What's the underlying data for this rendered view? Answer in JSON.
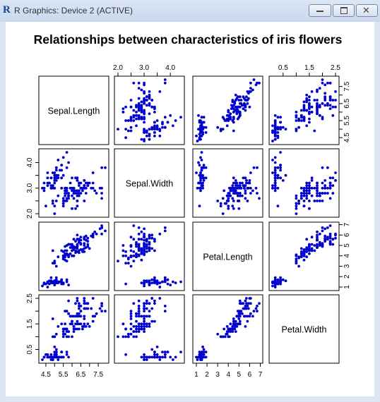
{
  "window": {
    "title": "R Graphics: Device 2 (ACTIVE)",
    "icon": "r-logo-icon",
    "buttons": [
      "minimize-icon",
      "maximize-icon",
      "close-icon"
    ]
  },
  "chart_data": {
    "type": "scatter",
    "subtype": "scatterplot-matrix",
    "title": "Relationships between characteristics of iris flowers",
    "point_color": "#0000cc",
    "variables": [
      {
        "name": "Sepal.Length",
        "range": [
          4.3,
          7.9
        ],
        "ticks": [
          "4.5",
          "5.5",
          "6.5",
          "7.5"
        ],
        "tick_values": [
          4.5,
          5.5,
          6.5,
          7.5
        ],
        "minor_ticks": [
          "5.0",
          "6.0",
          "7.0"
        ],
        "minor_tick_values": [
          5.0,
          6.0,
          7.0
        ]
      },
      {
        "name": "Sepal.Width",
        "range": [
          2.0,
          4.4
        ],
        "ticks": [
          "2.0",
          "3.0",
          "4.0"
        ],
        "tick_values": [
          2.0,
          3.0,
          4.0
        ],
        "minor_ticks": [
          "2.5",
          "3.5"
        ],
        "minor_tick_values": [
          2.5,
          3.5
        ]
      },
      {
        "name": "Petal.Length",
        "range": [
          1.0,
          6.9
        ],
        "ticks": [
          "1",
          "2",
          "3",
          "4",
          "5",
          "6",
          "7"
        ],
        "tick_values": [
          1,
          2,
          3,
          4,
          5,
          6,
          7
        ],
        "minor_ticks": [],
        "minor_tick_values": []
      },
      {
        "name": "Petal.Width",
        "range": [
          0.1,
          2.5
        ],
        "ticks": [
          "0.5",
          "1.5",
          "2.5"
        ],
        "tick_values": [
          0.5,
          1.5,
          2.5
        ],
        "minor_ticks": [
          "1.0",
          "2.0"
        ],
        "minor_tick_values": [
          1.0,
          2.0
        ]
      }
    ],
    "observations": [
      [
        5.1,
        3.5,
        1.4,
        0.2
      ],
      [
        4.9,
        3.0,
        1.4,
        0.2
      ],
      [
        4.7,
        3.2,
        1.3,
        0.2
      ],
      [
        4.6,
        3.1,
        1.5,
        0.2
      ],
      [
        5.0,
        3.6,
        1.4,
        0.2
      ],
      [
        5.4,
        3.9,
        1.7,
        0.4
      ],
      [
        4.6,
        3.4,
        1.4,
        0.3
      ],
      [
        5.0,
        3.4,
        1.5,
        0.2
      ],
      [
        4.4,
        2.9,
        1.4,
        0.2
      ],
      [
        4.9,
        3.1,
        1.5,
        0.1
      ],
      [
        5.4,
        3.7,
        1.5,
        0.2
      ],
      [
        4.8,
        3.4,
        1.6,
        0.2
      ],
      [
        4.8,
        3.0,
        1.4,
        0.1
      ],
      [
        4.3,
        3.0,
        1.1,
        0.1
      ],
      [
        5.8,
        4.0,
        1.2,
        0.2
      ],
      [
        5.7,
        4.4,
        1.5,
        0.4
      ],
      [
        5.4,
        3.9,
        1.3,
        0.4
      ],
      [
        5.1,
        3.5,
        1.4,
        0.3
      ],
      [
        5.7,
        3.8,
        1.7,
        0.3
      ],
      [
        5.1,
        3.8,
        1.5,
        0.3
      ],
      [
        5.4,
        3.4,
        1.7,
        0.2
      ],
      [
        5.1,
        3.7,
        1.5,
        0.4
      ],
      [
        4.6,
        3.6,
        1.0,
        0.2
      ],
      [
        5.1,
        3.3,
        1.7,
        0.5
      ],
      [
        4.8,
        3.4,
        1.9,
        0.2
      ],
      [
        5.0,
        3.0,
        1.6,
        0.2
      ],
      [
        5.0,
        3.4,
        1.6,
        0.4
      ],
      [
        5.2,
        3.5,
        1.5,
        0.2
      ],
      [
        5.2,
        3.4,
        1.4,
        0.2
      ],
      [
        4.7,
        3.2,
        1.6,
        0.2
      ],
      [
        4.8,
        3.1,
        1.6,
        0.2
      ],
      [
        5.4,
        3.4,
        1.5,
        0.4
      ],
      [
        5.2,
        4.1,
        1.5,
        0.1
      ],
      [
        5.5,
        4.2,
        1.4,
        0.2
      ],
      [
        4.9,
        3.1,
        1.5,
        0.2
      ],
      [
        5.0,
        3.2,
        1.2,
        0.2
      ],
      [
        5.5,
        3.5,
        1.3,
        0.2
      ],
      [
        4.9,
        3.6,
        1.4,
        0.1
      ],
      [
        4.4,
        3.0,
        1.3,
        0.2
      ],
      [
        5.1,
        3.4,
        1.5,
        0.2
      ],
      [
        5.0,
        3.5,
        1.3,
        0.3
      ],
      [
        4.5,
        2.3,
        1.3,
        0.3
      ],
      [
        4.4,
        3.2,
        1.3,
        0.2
      ],
      [
        5.0,
        3.5,
        1.6,
        0.6
      ],
      [
        5.1,
        3.8,
        1.9,
        0.4
      ],
      [
        4.8,
        3.0,
        1.4,
        0.3
      ],
      [
        5.1,
        3.8,
        1.6,
        0.2
      ],
      [
        4.6,
        3.2,
        1.4,
        0.2
      ],
      [
        5.3,
        3.7,
        1.5,
        0.2
      ],
      [
        5.0,
        3.3,
        1.4,
        0.2
      ],
      [
        7.0,
        3.2,
        4.7,
        1.4
      ],
      [
        6.4,
        3.2,
        4.5,
        1.5
      ],
      [
        6.9,
        3.1,
        4.9,
        1.5
      ],
      [
        5.5,
        2.3,
        4.0,
        1.3
      ],
      [
        6.5,
        2.8,
        4.6,
        1.5
      ],
      [
        5.7,
        2.8,
        4.5,
        1.3
      ],
      [
        6.3,
        3.3,
        4.7,
        1.6
      ],
      [
        4.9,
        2.4,
        3.3,
        1.0
      ],
      [
        6.6,
        2.9,
        4.6,
        1.3
      ],
      [
        5.2,
        2.7,
        3.9,
        1.4
      ],
      [
        5.0,
        2.0,
        3.5,
        1.0
      ],
      [
        5.9,
        3.0,
        4.2,
        1.5
      ],
      [
        6.0,
        2.2,
        4.0,
        1.0
      ],
      [
        6.1,
        2.9,
        4.7,
        1.4
      ],
      [
        5.6,
        2.9,
        3.6,
        1.3
      ],
      [
        6.7,
        3.1,
        4.4,
        1.4
      ],
      [
        5.6,
        3.0,
        4.5,
        1.5
      ],
      [
        5.8,
        2.7,
        4.1,
        1.0
      ],
      [
        6.2,
        2.2,
        4.5,
        1.5
      ],
      [
        5.6,
        2.5,
        3.9,
        1.1
      ],
      [
        5.9,
        3.2,
        4.8,
        1.8
      ],
      [
        6.1,
        2.8,
        4.0,
        1.3
      ],
      [
        6.3,
        2.5,
        4.9,
        1.5
      ],
      [
        6.1,
        2.8,
        4.7,
        1.2
      ],
      [
        6.4,
        2.9,
        4.3,
        1.3
      ],
      [
        6.6,
        3.0,
        4.4,
        1.4
      ],
      [
        6.8,
        2.8,
        4.8,
        1.4
      ],
      [
        6.7,
        3.0,
        5.0,
        1.7
      ],
      [
        6.0,
        2.9,
        4.5,
        1.5
      ],
      [
        5.7,
        2.6,
        3.5,
        1.0
      ],
      [
        5.5,
        2.4,
        3.8,
        1.1
      ],
      [
        5.5,
        2.4,
        3.7,
        1.0
      ],
      [
        5.8,
        2.7,
        3.9,
        1.2
      ],
      [
        6.0,
        2.7,
        5.1,
        1.6
      ],
      [
        5.4,
        3.0,
        4.5,
        1.5
      ],
      [
        6.0,
        3.4,
        4.5,
        1.6
      ],
      [
        6.7,
        3.1,
        4.7,
        1.5
      ],
      [
        6.3,
        2.3,
        4.4,
        1.3
      ],
      [
        5.6,
        3.0,
        4.1,
        1.3
      ],
      [
        5.5,
        2.5,
        4.0,
        1.3
      ],
      [
        5.5,
        2.6,
        4.4,
        1.2
      ],
      [
        6.1,
        3.0,
        4.6,
        1.4
      ],
      [
        5.8,
        2.6,
        4.0,
        1.2
      ],
      [
        5.0,
        2.3,
        3.3,
        1.0
      ],
      [
        5.6,
        2.7,
        4.2,
        1.3
      ],
      [
        5.7,
        3.0,
        4.2,
        1.2
      ],
      [
        5.7,
        2.9,
        4.2,
        1.3
      ],
      [
        6.2,
        2.9,
        4.3,
        1.3
      ],
      [
        5.1,
        2.5,
        3.0,
        1.1
      ],
      [
        5.7,
        2.8,
        4.1,
        1.3
      ],
      [
        6.3,
        3.3,
        6.0,
        2.5
      ],
      [
        5.8,
        2.7,
        5.1,
        1.9
      ],
      [
        7.1,
        3.0,
        5.9,
        2.1
      ],
      [
        6.3,
        2.9,
        5.6,
        1.8
      ],
      [
        6.5,
        3.0,
        5.8,
        2.2
      ],
      [
        7.6,
        3.0,
        6.6,
        2.1
      ],
      [
        4.9,
        2.5,
        4.5,
        1.7
      ],
      [
        7.3,
        2.9,
        6.3,
        1.8
      ],
      [
        6.7,
        2.5,
        5.8,
        1.8
      ],
      [
        7.2,
        3.6,
        6.1,
        2.5
      ],
      [
        6.5,
        3.2,
        5.1,
        2.0
      ],
      [
        6.4,
        2.7,
        5.3,
        1.9
      ],
      [
        6.8,
        3.0,
        5.5,
        2.1
      ],
      [
        5.7,
        2.5,
        5.0,
        2.0
      ],
      [
        5.8,
        2.8,
        5.1,
        2.4
      ],
      [
        6.4,
        3.2,
        5.3,
        2.3
      ],
      [
        6.5,
        3.0,
        5.5,
        1.8
      ],
      [
        7.7,
        3.8,
        6.7,
        2.2
      ],
      [
        7.7,
        2.6,
        6.9,
        2.3
      ],
      [
        6.0,
        2.2,
        5.0,
        1.5
      ],
      [
        6.9,
        3.2,
        5.7,
        2.3
      ],
      [
        5.6,
        2.8,
        4.9,
        2.0
      ],
      [
        7.7,
        2.8,
        6.7,
        2.0
      ],
      [
        6.3,
        2.7,
        4.9,
        1.8
      ],
      [
        6.7,
        3.3,
        5.7,
        2.1
      ],
      [
        7.2,
        3.2,
        6.0,
        1.8
      ],
      [
        6.2,
        2.8,
        4.8,
        1.8
      ],
      [
        6.1,
        3.0,
        4.9,
        1.8
      ],
      [
        6.4,
        2.8,
        5.6,
        2.1
      ],
      [
        7.2,
        3.0,
        5.8,
        1.6
      ],
      [
        7.4,
        2.8,
        6.1,
        1.9
      ],
      [
        7.9,
        3.8,
        6.4,
        2.0
      ],
      [
        6.4,
        2.8,
        5.6,
        2.2
      ],
      [
        6.3,
        2.8,
        5.1,
        1.5
      ],
      [
        6.1,
        2.6,
        5.6,
        1.4
      ],
      [
        7.7,
        3.0,
        6.1,
        2.3
      ],
      [
        6.3,
        3.4,
        5.6,
        2.4
      ],
      [
        6.4,
        3.1,
        5.5,
        1.8
      ],
      [
        6.0,
        3.0,
        4.8,
        1.8
      ],
      [
        6.9,
        3.1,
        5.4,
        2.1
      ],
      [
        6.7,
        3.1,
        5.6,
        2.4
      ],
      [
        6.9,
        3.1,
        5.1,
        2.3
      ],
      [
        5.8,
        2.7,
        5.1,
        1.9
      ],
      [
        6.8,
        3.2,
        5.9,
        2.3
      ],
      [
        6.7,
        3.3,
        5.7,
        2.5
      ],
      [
        6.7,
        3.0,
        5.2,
        2.3
      ],
      [
        6.3,
        2.5,
        5.0,
        1.9
      ],
      [
        6.5,
        3.0,
        5.2,
        2.0
      ],
      [
        6.2,
        3.4,
        5.4,
        2.3
      ],
      [
        5.9,
        3.0,
        5.1,
        1.8
      ]
    ]
  }
}
